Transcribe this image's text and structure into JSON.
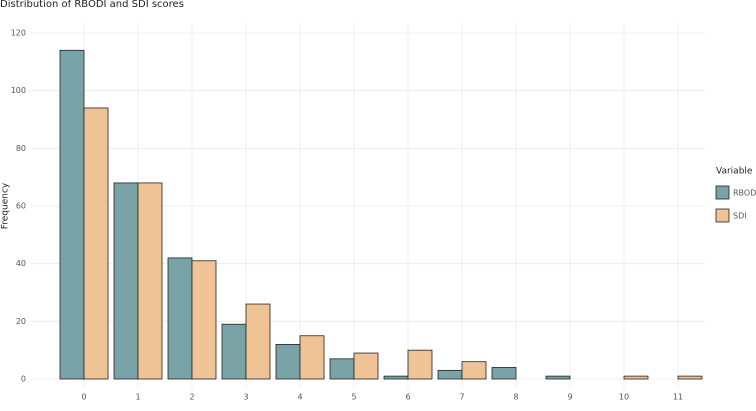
{
  "chart_data": {
    "type": "bar",
    "title": "Distribution of RBODI and SDI scores",
    "y_label": "Frequency",
    "legend_title": "Variable",
    "categories": [
      "0",
      "1",
      "2",
      "3",
      "4",
      "5",
      "6",
      "7",
      "8",
      "9",
      "10",
      "11"
    ],
    "series": [
      {
        "name": "RBODI",
        "color": "#7aa3a8",
        "values": [
          114,
          68,
          42,
          19,
          12,
          7,
          1,
          3,
          4,
          1,
          0,
          0
        ]
      },
      {
        "name": "SDI",
        "color": "#f0c397",
        "values": [
          94,
          68,
          41,
          26,
          15,
          9,
          10,
          6,
          0,
          0,
          1,
          1
        ]
      }
    ],
    "ylim": [
      0,
      120
    ],
    "yticks": [
      0,
      20,
      40,
      60,
      80,
      100,
      120
    ],
    "grid": true,
    "legend": "right"
  }
}
